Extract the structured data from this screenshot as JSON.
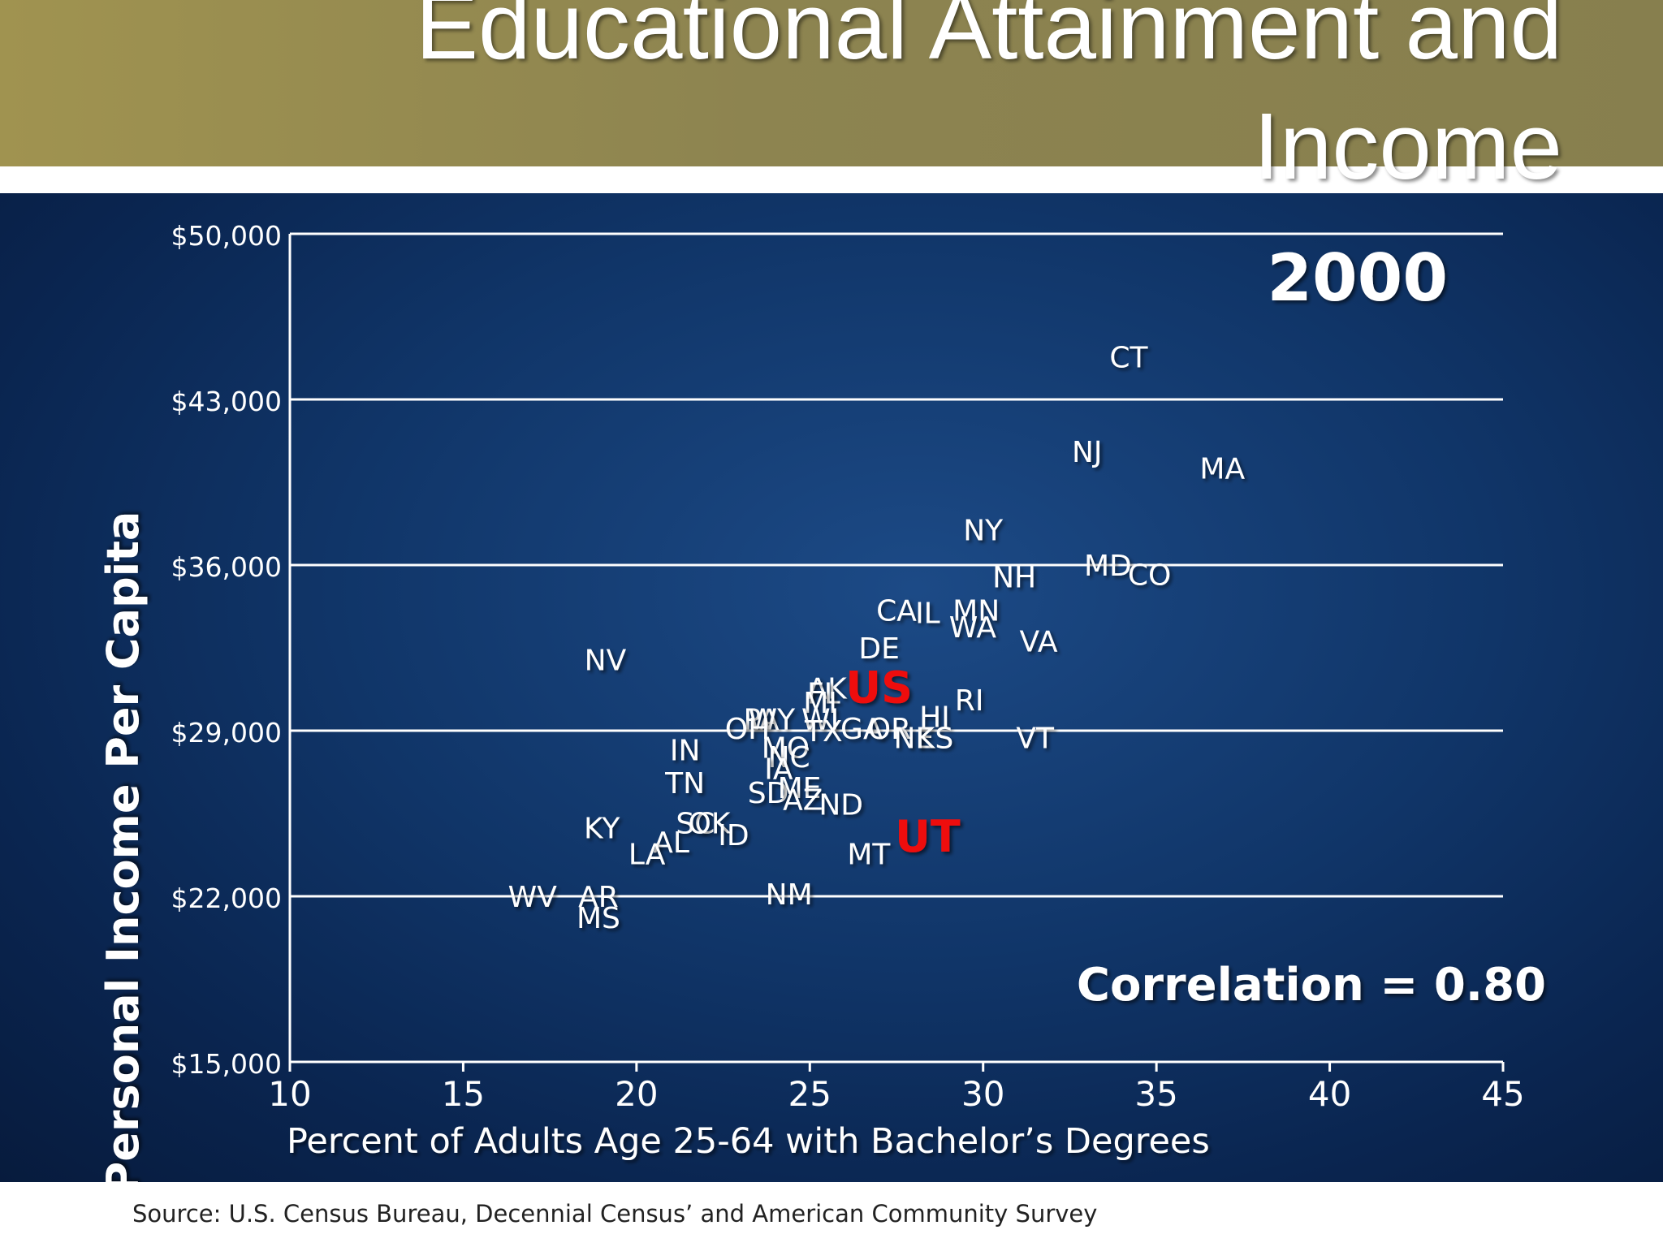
{
  "slide": {
    "title": "Educational Attainment and Income",
    "source": "Source:  U.S. Census Bureau, Decennial Census’ and American Community Survey"
  },
  "chart_data": {
    "type": "scatter",
    "title": "",
    "year_label": "2000",
    "annotation": "Correlation = 0.80",
    "xlabel": "Percent of Adults Age 25-64 with Bachelor’s Degrees",
    "ylabel": "Personal Income Per Capita",
    "xlim": [
      10,
      45
    ],
    "ylim": [
      15000,
      50000
    ],
    "x_ticks": [
      "10",
      "15",
      "20",
      "25",
      "30",
      "35",
      "40",
      "45"
    ],
    "y_ticks": [
      "$15,000",
      "$22,000",
      "$29,000",
      "$36,000",
      "$43,000",
      "$50,000"
    ],
    "y_tick_values": [
      15000,
      22000,
      29000,
      36000,
      43000,
      50000
    ],
    "grid": true,
    "colors": {
      "label": "#ffffff",
      "highlight": "#ee1111",
      "gridline": "#ffffff"
    },
    "points": [
      {
        "label": "CT",
        "x": 34.2,
        "y": 44800
      },
      {
        "label": "NJ",
        "x": 33.0,
        "y": 40800
      },
      {
        "label": "MA",
        "x": 36.9,
        "y": 40100
      },
      {
        "label": "NY",
        "x": 30.0,
        "y": 37500
      },
      {
        "label": "MD",
        "x": 33.6,
        "y": 36000
      },
      {
        "label": "CO",
        "x": 34.8,
        "y": 35600
      },
      {
        "label": "NH",
        "x": 30.9,
        "y": 35500
      },
      {
        "label": "CA",
        "x": 27.5,
        "y": 34100
      },
      {
        "label": "IL",
        "x": 28.4,
        "y": 34000
      },
      {
        "label": "MN",
        "x": 29.8,
        "y": 34100
      },
      {
        "label": "WA",
        "x": 29.7,
        "y": 33400
      },
      {
        "label": "VA",
        "x": 31.6,
        "y": 32800
      },
      {
        "label": "DE",
        "x": 27.0,
        "y": 32500
      },
      {
        "label": "NV",
        "x": 19.1,
        "y": 32000
      },
      {
        "label": "AK",
        "x": 25.5,
        "y": 30800
      },
      {
        "label": "FL",
        "x": 25.4,
        "y": 30600
      },
      {
        "label": "US",
        "x": 27.0,
        "y": 30800,
        "highlight": true
      },
      {
        "label": "MI",
        "x": 25.3,
        "y": 30200
      },
      {
        "label": "RI",
        "x": 29.6,
        "y": 30300
      },
      {
        "label": "PA",
        "x": 23.6,
        "y": 29500
      },
      {
        "label": "WY",
        "x": 23.9,
        "y": 29500
      },
      {
        "label": "WI",
        "x": 25.3,
        "y": 29500
      },
      {
        "label": "HI",
        "x": 28.6,
        "y": 29600
      },
      {
        "label": "OH",
        "x": 23.2,
        "y": 29100
      },
      {
        "label": "TX",
        "x": 25.4,
        "y": 29000
      },
      {
        "label": "GA",
        "x": 26.5,
        "y": 29100
      },
      {
        "label": "OR",
        "x": 27.3,
        "y": 29100
      },
      {
        "label": "NE",
        "x": 28.0,
        "y": 28700
      },
      {
        "label": "KS",
        "x": 28.6,
        "y": 28700
      },
      {
        "label": "VT",
        "x": 31.5,
        "y": 28700
      },
      {
        "label": "IN",
        "x": 21.4,
        "y": 28200
      },
      {
        "label": "MO",
        "x": 24.3,
        "y": 28300
      },
      {
        "label": "NC",
        "x": 24.4,
        "y": 27900
      },
      {
        "label": "IA",
        "x": 24.1,
        "y": 27400
      },
      {
        "label": "TN",
        "x": 21.4,
        "y": 26800
      },
      {
        "label": "SD",
        "x": 23.8,
        "y": 26400
      },
      {
        "label": "ME",
        "x": 24.7,
        "y": 26600
      },
      {
        "label": "AZ",
        "x": 24.8,
        "y": 26100
      },
      {
        "label": "ND",
        "x": 25.9,
        "y": 25900
      },
      {
        "label": "SC",
        "x": 21.7,
        "y": 25100
      },
      {
        "label": "OK",
        "x": 22.1,
        "y": 25100
      },
      {
        "label": "KY",
        "x": 19.0,
        "y": 24900
      },
      {
        "label": "ID",
        "x": 22.8,
        "y": 24600
      },
      {
        "label": "AL",
        "x": 21.0,
        "y": 24300
      },
      {
        "label": "LA",
        "x": 20.3,
        "y": 23800
      },
      {
        "label": "UT",
        "x": 28.4,
        "y": 24500,
        "highlight": true
      },
      {
        "label": "MT",
        "x": 26.7,
        "y": 23800
      },
      {
        "label": "NM",
        "x": 24.4,
        "y": 22100
      },
      {
        "label": "WV",
        "x": 17.0,
        "y": 22000
      },
      {
        "label": "AR",
        "x": 18.9,
        "y": 22000
      },
      {
        "label": "MS",
        "x": 18.9,
        "y": 21100
      }
    ]
  }
}
